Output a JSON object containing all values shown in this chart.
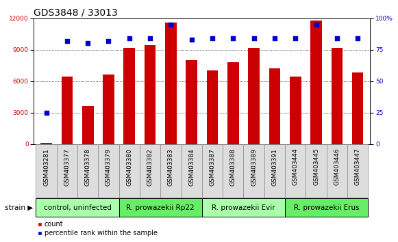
{
  "title": "GDS3848 / 33013",
  "samples": [
    "GSM403281",
    "GSM403377",
    "GSM403378",
    "GSM403379",
    "GSM403380",
    "GSM403382",
    "GSM403383",
    "GSM403384",
    "GSM403387",
    "GSM403388",
    "GSM403389",
    "GSM403391",
    "GSM403444",
    "GSM403445",
    "GSM403446",
    "GSM403447"
  ],
  "counts": [
    100,
    6400,
    3600,
    6600,
    9200,
    9400,
    11600,
    8000,
    7000,
    7800,
    9200,
    7200,
    6400,
    11800,
    9200,
    6800
  ],
  "percentiles": [
    25,
    82,
    80,
    82,
    84,
    84,
    95,
    83,
    84,
    84,
    84,
    84,
    84,
    95,
    84,
    84
  ],
  "ylim_left": [
    0,
    12000
  ],
  "ylim_right": [
    0,
    100
  ],
  "yticks_left": [
    0,
    3000,
    6000,
    9000,
    12000
  ],
  "yticks_right": [
    0,
    25,
    50,
    75,
    100
  ],
  "bar_color": "#cc0000",
  "dot_color": "#0000cc",
  "background_color": "#ffffff",
  "groups": [
    {
      "label": "control, uninfected",
      "start": 0,
      "end": 3,
      "color": "#aaffaa"
    },
    {
      "label": "R. prowazekii Rp22",
      "start": 4,
      "end": 7,
      "color": "#66ee66"
    },
    {
      "label": "R. prowazekii Evir",
      "start": 8,
      "end": 11,
      "color": "#aaffaa"
    },
    {
      "label": "R. prowazekii Erus",
      "start": 12,
      "end": 15,
      "color": "#66ee66"
    }
  ],
  "strain_label": "strain",
  "legend_count_label": "count",
  "legend_pct_label": "percentile rank within the sample",
  "title_fontsize": 10,
  "tick_fontsize": 6.5,
  "group_fontsize": 7.5,
  "legend_fontsize": 7,
  "sample_box_color": "#dddddd",
  "sample_box_edge": "#888888"
}
